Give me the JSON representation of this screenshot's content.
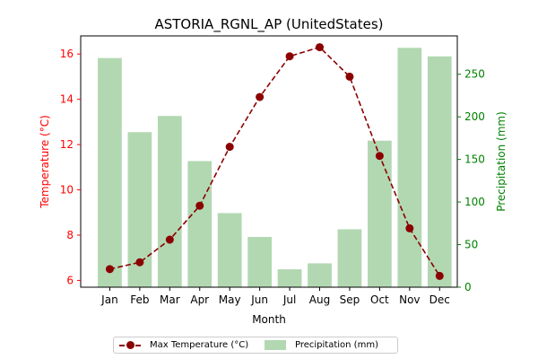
{
  "chart_data": {
    "type": "bar+line",
    "title": "ASTORIA_RGNL_AP (UnitedStates)",
    "xlabel": "Month",
    "categories": [
      "Jan",
      "Feb",
      "Mar",
      "Apr",
      "May",
      "Jun",
      "Jul",
      "Aug",
      "Sep",
      "Oct",
      "Nov",
      "Dec"
    ],
    "series": [
      {
        "name": "Max Temperature (°C)",
        "kind": "line",
        "axis": "left",
        "values": [
          6.5,
          6.8,
          7.8,
          9.3,
          11.9,
          14.1,
          15.9,
          16.3,
          15.0,
          11.5,
          8.3,
          6.2
        ]
      },
      {
        "name": "Precipitation (mm)",
        "kind": "bar",
        "axis": "right",
        "values": [
          269,
          182,
          201,
          148,
          87,
          59,
          21,
          28,
          68,
          172,
          281,
          271
        ]
      }
    ],
    "y_left": {
      "label": "Temperature (°C)",
      "ylim": [
        5.7,
        16.8
      ],
      "ticks": [
        "6",
        "8",
        "10",
        "12",
        "14",
        "16"
      ],
      "color": "#ff0000"
    },
    "y_right": {
      "label": "Precipitation (mm)",
      "ylim": [
        0,
        295
      ],
      "ticks": [
        "0",
        "50",
        "100",
        "150",
        "200",
        "250"
      ],
      "color": "#008000"
    },
    "colors": {
      "line": "#8b0000",
      "bar": "#b2d8b2"
    },
    "legend": "bottom-center",
    "grid": false
  }
}
